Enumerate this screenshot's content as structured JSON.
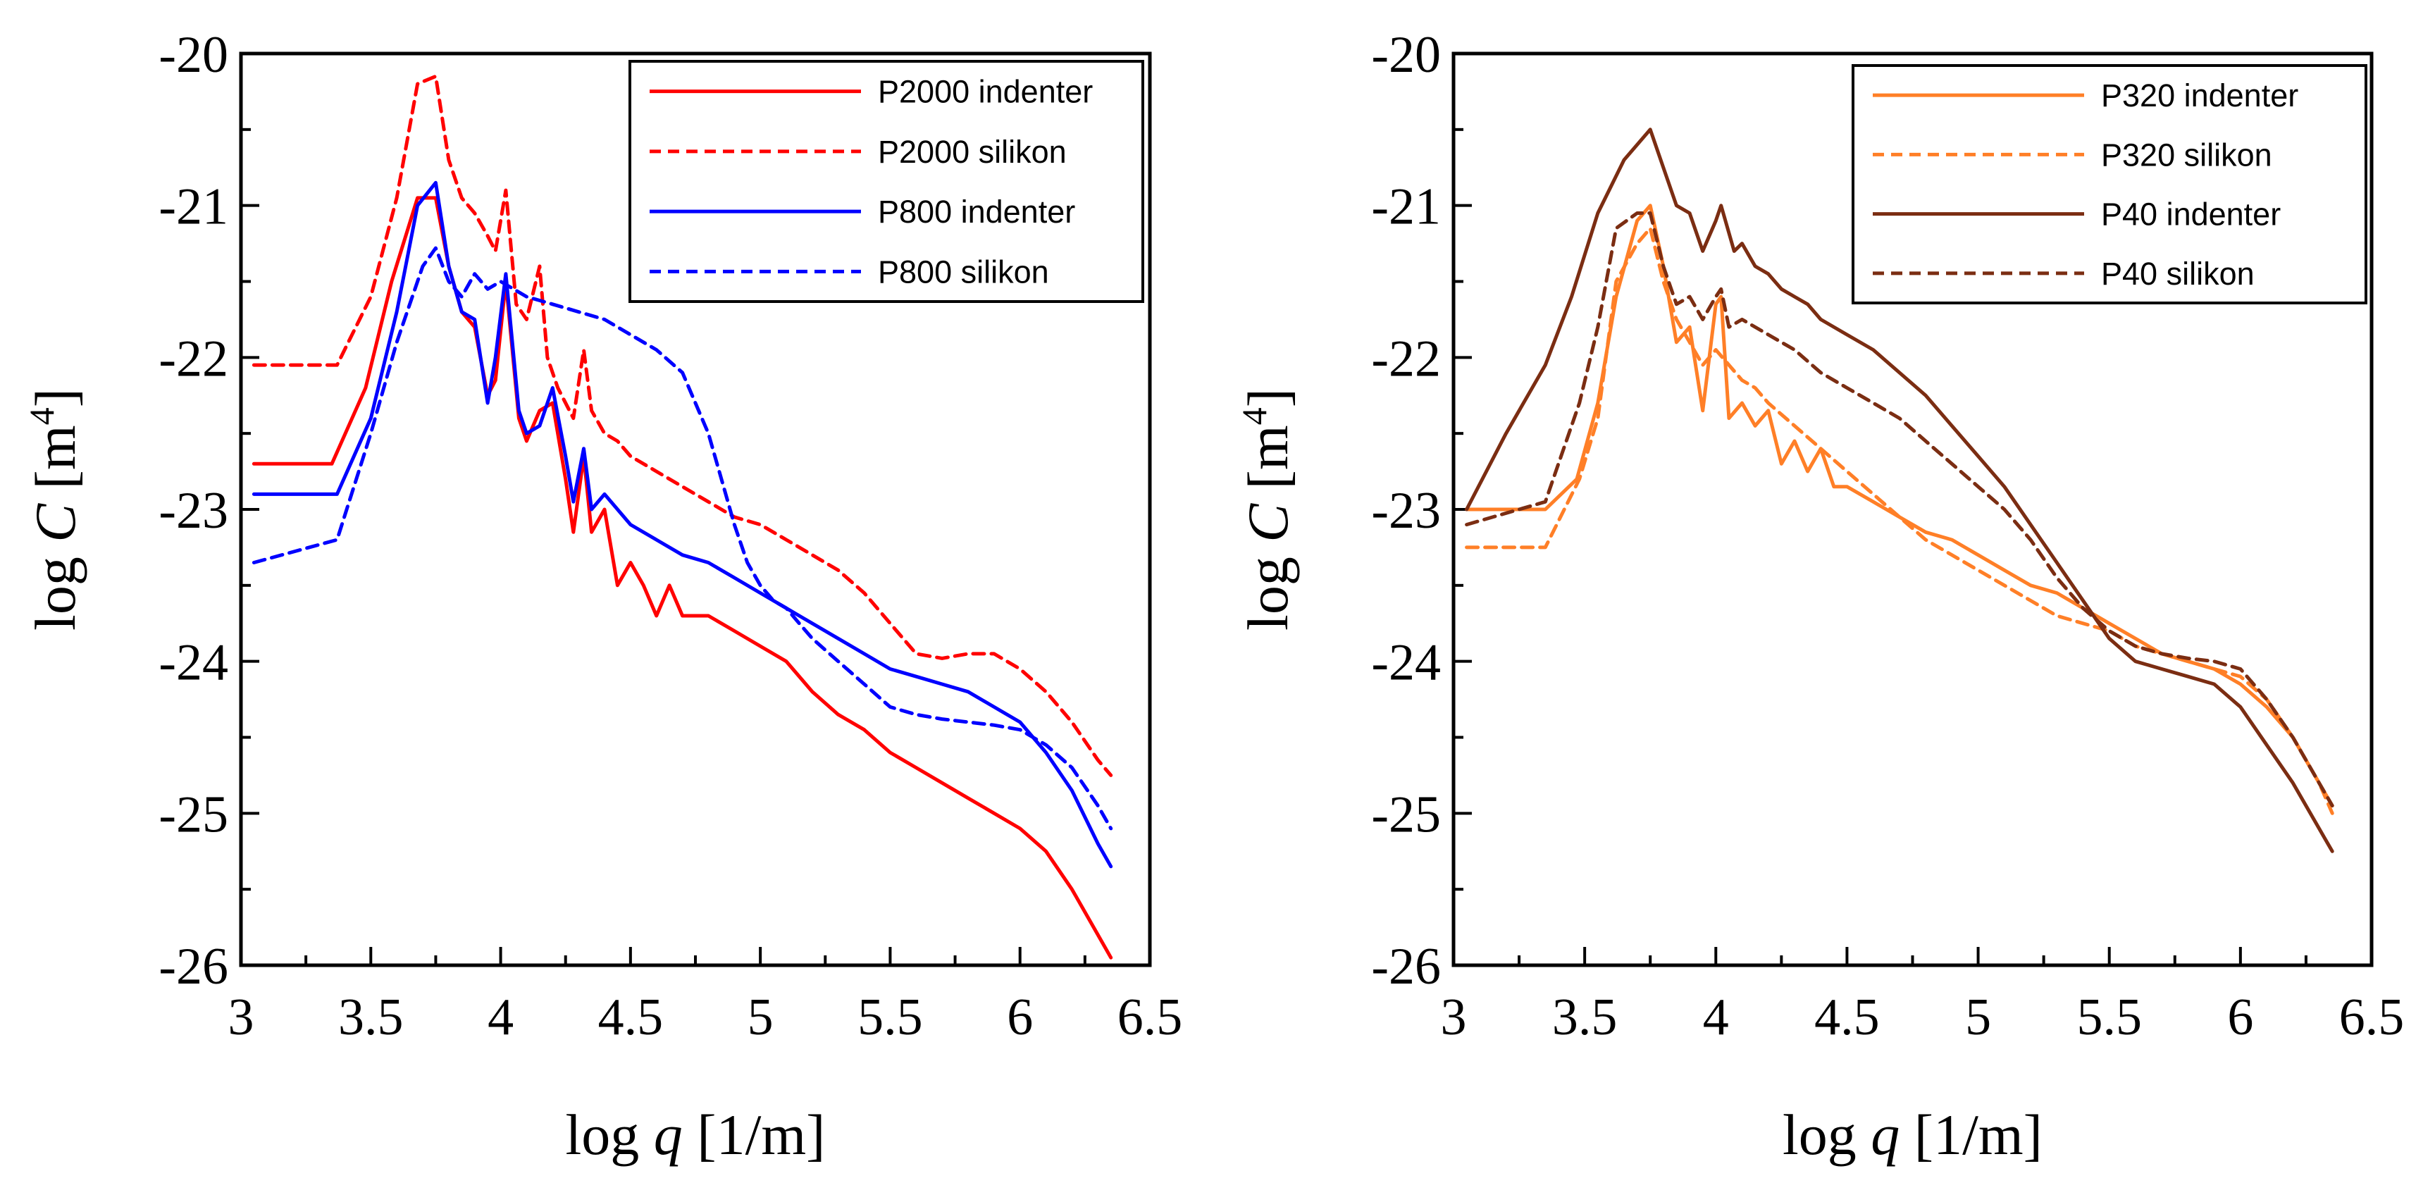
{
  "chart_data": [
    {
      "type": "line",
      "xlabel": "log q [1/m]",
      "ylabel": "log C [m4]",
      "xlabel_parts": {
        "prefix": "log ",
        "var": "q",
        "suffix": " [1/m]"
      },
      "ylabel_parts": {
        "prefix": "log ",
        "var": "C",
        "suffix": " [m",
        "sup": "4",
        "close": "]"
      },
      "xlim": [
        3,
        6.5
      ],
      "ylim": [
        -26,
        -20
      ],
      "xticks": [
        "3",
        "3.5",
        "4",
        "4.5",
        "5",
        "5.5",
        "6",
        "6.5"
      ],
      "yticks": [
        "-20",
        "-21",
        "-22",
        "-23",
        "-24",
        "-25",
        "-26"
      ],
      "legend_position": "top-right",
      "series": [
        {
          "name": "P2000 indenter",
          "color": "#ff0000",
          "dash": false,
          "x": [
            3.05,
            3.35,
            3.48,
            3.58,
            3.68,
            3.75,
            3.8,
            3.85,
            3.9,
            3.95,
            3.98,
            4.02,
            4.07,
            4.1,
            4.15,
            4.2,
            4.25,
            4.28,
            4.32,
            4.35,
            4.4,
            4.45,
            4.5,
            4.55,
            4.6,
            4.65,
            4.7,
            4.8,
            4.9,
            5.0,
            5.1,
            5.2,
            5.3,
            5.4,
            5.5,
            5.6,
            5.7,
            5.8,
            5.9,
            6.0,
            6.1,
            6.2,
            6.3,
            6.35
          ],
          "y": [
            -22.7,
            -22.7,
            -22.2,
            -21.5,
            -20.95,
            -20.95,
            -21.4,
            -21.7,
            -21.8,
            -22.25,
            -22.15,
            -21.5,
            -22.4,
            -22.55,
            -22.35,
            -22.3,
            -22.8,
            -23.15,
            -22.65,
            -23.15,
            -23.0,
            -23.5,
            -23.35,
            -23.5,
            -23.7,
            -23.5,
            -23.7,
            -23.7,
            -23.8,
            -23.9,
            -24.0,
            -24.2,
            -24.35,
            -24.45,
            -24.6,
            -24.7,
            -24.8,
            -24.9,
            -25.0,
            -25.1,
            -25.25,
            -25.5,
            -25.8,
            -25.95
          ]
        },
        {
          "name": "P2000 silikon",
          "color": "#ff0000",
          "dash": true,
          "x": [
            3.05,
            3.37,
            3.5,
            3.6,
            3.68,
            3.75,
            3.8,
            3.85,
            3.9,
            3.95,
            3.98,
            4.02,
            4.06,
            4.1,
            4.15,
            4.18,
            4.22,
            4.28,
            4.32,
            4.35,
            4.4,
            4.45,
            4.5,
            4.6,
            4.7,
            4.8,
            4.9,
            5.0,
            5.1,
            5.2,
            5.3,
            5.4,
            5.5,
            5.6,
            5.7,
            5.8,
            5.9,
            6.0,
            6.1,
            6.2,
            6.3,
            6.35
          ],
          "y": [
            -22.05,
            -22.05,
            -21.6,
            -20.95,
            -20.2,
            -20.15,
            -20.7,
            -20.95,
            -21.05,
            -21.2,
            -21.3,
            -20.9,
            -21.65,
            -21.75,
            -21.4,
            -22.0,
            -22.2,
            -22.4,
            -21.95,
            -22.35,
            -22.5,
            -22.55,
            -22.65,
            -22.75,
            -22.85,
            -22.95,
            -23.05,
            -23.1,
            -23.2,
            -23.3,
            -23.4,
            -23.55,
            -23.75,
            -23.95,
            -23.98,
            -23.95,
            -23.95,
            -24.05,
            -24.2,
            -24.4,
            -24.65,
            -24.75
          ]
        },
        {
          "name": "P800 indenter",
          "color": "#0000ff",
          "dash": false,
          "x": [
            3.05,
            3.37,
            3.5,
            3.6,
            3.68,
            3.75,
            3.8,
            3.85,
            3.9,
            3.95,
            3.98,
            4.02,
            4.07,
            4.1,
            4.15,
            4.2,
            4.25,
            4.28,
            4.32,
            4.35,
            4.4,
            4.5,
            4.6,
            4.7,
            4.8,
            4.9,
            5.0,
            5.1,
            5.2,
            5.3,
            5.4,
            5.5,
            5.6,
            5.7,
            5.8,
            5.9,
            6.0,
            6.1,
            6.2,
            6.3,
            6.35
          ],
          "y": [
            -22.9,
            -22.9,
            -22.4,
            -21.7,
            -21.0,
            -20.85,
            -21.4,
            -21.7,
            -21.75,
            -22.3,
            -22.0,
            -21.45,
            -22.35,
            -22.5,
            -22.45,
            -22.2,
            -22.65,
            -22.95,
            -22.6,
            -23.0,
            -22.9,
            -23.1,
            -23.2,
            -23.3,
            -23.35,
            -23.45,
            -23.55,
            -23.65,
            -23.75,
            -23.85,
            -23.95,
            -24.05,
            -24.1,
            -24.15,
            -24.2,
            -24.3,
            -24.4,
            -24.6,
            -24.85,
            -25.2,
            -25.35
          ]
        },
        {
          "name": "P800 silikon",
          "color": "#0000ff",
          "dash": true,
          "x": [
            3.05,
            3.37,
            3.5,
            3.6,
            3.7,
            3.75,
            3.8,
            3.85,
            3.9,
            3.95,
            4.0,
            4.1,
            4.2,
            4.3,
            4.4,
            4.5,
            4.6,
            4.7,
            4.75,
            4.8,
            4.85,
            4.9,
            4.95,
            5.0,
            5.05,
            5.1,
            5.15,
            5.2,
            5.3,
            5.4,
            5.5,
            5.6,
            5.7,
            5.8,
            5.9,
            6.0,
            6.1,
            6.2,
            6.3,
            6.35
          ],
          "y": [
            -23.35,
            -23.2,
            -22.5,
            -21.9,
            -21.4,
            -21.28,
            -21.5,
            -21.6,
            -21.45,
            -21.55,
            -21.5,
            -21.6,
            -21.65,
            -21.7,
            -21.75,
            -21.85,
            -21.95,
            -22.1,
            -22.3,
            -22.5,
            -22.8,
            -23.1,
            -23.35,
            -23.5,
            -23.6,
            -23.65,
            -23.75,
            -23.85,
            -24.0,
            -24.15,
            -24.3,
            -24.35,
            -24.38,
            -24.4,
            -24.42,
            -24.45,
            -24.55,
            -24.7,
            -24.95,
            -25.1
          ]
        }
      ]
    },
    {
      "type": "line",
      "xlabel": "log q [1/m]",
      "ylabel": "log C [m4]",
      "xlabel_parts": {
        "prefix": "log ",
        "var": "q",
        "suffix": " [1/m]"
      },
      "ylabel_parts": {
        "prefix": "log ",
        "var": "C",
        "suffix": " [m",
        "sup": "4",
        "close": "]"
      },
      "xlim": [
        3,
        6.5
      ],
      "ylim": [
        -26,
        -20
      ],
      "xticks": [
        "3",
        "3.5",
        "4",
        "4.5",
        "5",
        "5.5",
        "6",
        "6.5"
      ],
      "yticks": [
        "-20",
        "-21",
        "-22",
        "-23",
        "-24",
        "-25",
        "-26"
      ],
      "legend_position": "top-right",
      "series": [
        {
          "name": "P320 indenter",
          "color": "#ff7f27",
          "dash": false,
          "x": [
            3.05,
            3.35,
            3.47,
            3.55,
            3.62,
            3.7,
            3.75,
            3.8,
            3.85,
            3.9,
            3.95,
            4.0,
            4.02,
            4.05,
            4.1,
            4.15,
            4.2,
            4.25,
            4.3,
            4.35,
            4.4,
            4.45,
            4.5,
            4.6,
            4.7,
            4.8,
            4.9,
            5.0,
            5.1,
            5.2,
            5.3,
            5.4,
            5.5,
            5.6,
            5.7,
            5.8,
            5.9,
            6.0,
            6.1,
            6.2,
            6.3,
            6.35
          ],
          "y": [
            -23.0,
            -23.0,
            -22.8,
            -22.3,
            -21.6,
            -21.1,
            -21.0,
            -21.4,
            -21.9,
            -21.8,
            -22.35,
            -21.65,
            -21.6,
            -22.4,
            -22.3,
            -22.45,
            -22.35,
            -22.7,
            -22.55,
            -22.75,
            -22.6,
            -22.85,
            -22.85,
            -22.95,
            -23.05,
            -23.15,
            -23.2,
            -23.3,
            -23.4,
            -23.5,
            -23.55,
            -23.65,
            -23.75,
            -23.85,
            -23.95,
            -24.0,
            -24.05,
            -24.15,
            -24.3,
            -24.5,
            -24.8,
            -24.95
          ]
        },
        {
          "name": "P320 silikon",
          "color": "#ff7f27",
          "dash": true,
          "x": [
            3.05,
            3.35,
            3.48,
            3.55,
            3.62,
            3.7,
            3.75,
            3.8,
            3.85,
            3.9,
            3.95,
            4.0,
            4.05,
            4.1,
            4.15,
            4.2,
            4.3,
            4.4,
            4.5,
            4.6,
            4.7,
            4.8,
            4.9,
            5.0,
            5.1,
            5.2,
            5.3,
            5.4,
            5.5,
            5.6,
            5.7,
            5.8,
            5.9,
            6.0,
            6.1,
            6.2,
            6.3,
            6.35
          ],
          "y": [
            -23.25,
            -23.25,
            -22.8,
            -22.4,
            -21.5,
            -21.25,
            -21.15,
            -21.5,
            -21.75,
            -21.9,
            -22.05,
            -21.95,
            -22.05,
            -22.15,
            -22.2,
            -22.3,
            -22.45,
            -22.6,
            -22.75,
            -22.9,
            -23.05,
            -23.2,
            -23.3,
            -23.4,
            -23.5,
            -23.6,
            -23.7,
            -23.75,
            -23.8,
            -23.9,
            -23.95,
            -24.0,
            -24.05,
            -24.1,
            -24.25,
            -24.5,
            -24.8,
            -25.0
          ]
        },
        {
          "name": "P40 indenter",
          "color": "#7b2d12",
          "dash": false,
          "x": [
            3.05,
            3.2,
            3.35,
            3.45,
            3.55,
            3.65,
            3.75,
            3.8,
            3.85,
            3.9,
            3.95,
            4.0,
            4.02,
            4.07,
            4.1,
            4.15,
            4.2,
            4.25,
            4.3,
            4.35,
            4.4,
            4.5,
            4.6,
            4.7,
            4.8,
            4.9,
            5.0,
            5.1,
            5.2,
            5.3,
            5.4,
            5.5,
            5.6,
            5.7,
            5.8,
            5.9,
            6.0,
            6.1,
            6.2,
            6.3,
            6.35
          ],
          "y": [
            -23.0,
            -22.5,
            -22.05,
            -21.6,
            -21.05,
            -20.7,
            -20.5,
            -20.75,
            -21.0,
            -21.05,
            -21.3,
            -21.1,
            -21.0,
            -21.3,
            -21.25,
            -21.4,
            -21.45,
            -21.55,
            -21.6,
            -21.65,
            -21.75,
            -21.85,
            -21.95,
            -22.1,
            -22.25,
            -22.45,
            -22.65,
            -22.85,
            -23.1,
            -23.35,
            -23.6,
            -23.85,
            -24.0,
            -24.05,
            -24.1,
            -24.15,
            -24.3,
            -24.55,
            -24.8,
            -25.1,
            -25.25
          ]
        },
        {
          "name": "P40 silikon",
          "color": "#7b2d12",
          "dash": true,
          "x": [
            3.05,
            3.35,
            3.48,
            3.55,
            3.62,
            3.7,
            3.75,
            3.8,
            3.85,
            3.9,
            3.95,
            4.0,
            4.02,
            4.05,
            4.1,
            4.2,
            4.3,
            4.4,
            4.5,
            4.6,
            4.7,
            4.8,
            4.9,
            5.0,
            5.1,
            5.2,
            5.3,
            5.4,
            5.5,
            5.6,
            5.7,
            5.8,
            5.9,
            6.0,
            6.1,
            6.2,
            6.3,
            6.35
          ],
          "y": [
            -23.1,
            -22.95,
            -22.3,
            -21.8,
            -21.15,
            -21.05,
            -21.05,
            -21.4,
            -21.65,
            -21.6,
            -21.75,
            -21.6,
            -21.55,
            -21.8,
            -21.75,
            -21.85,
            -21.95,
            -22.1,
            -22.2,
            -22.3,
            -22.4,
            -22.55,
            -22.7,
            -22.85,
            -23.0,
            -23.2,
            -23.45,
            -23.65,
            -23.8,
            -23.9,
            -23.95,
            -23.98,
            -24.0,
            -24.05,
            -24.25,
            -24.5,
            -24.8,
            -24.95
          ]
        }
      ]
    }
  ]
}
